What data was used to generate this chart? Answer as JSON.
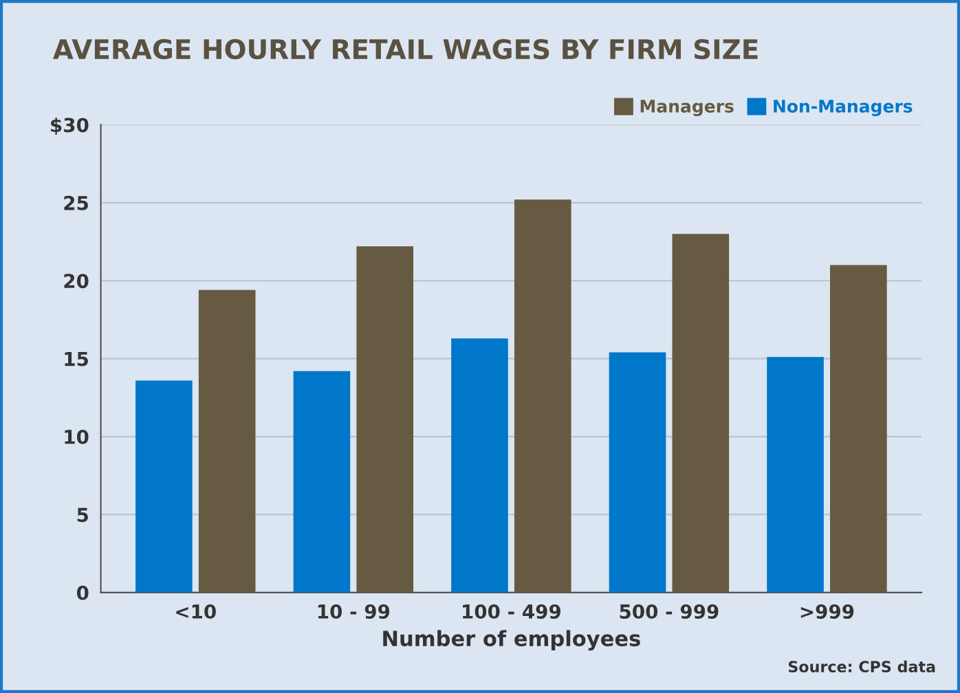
{
  "chart_data": {
    "type": "bar",
    "title": "AVERAGE HOURLY RETAIL WAGES BY FIRM SIZE",
    "xlabel": "Number of employees",
    "categories": [
      "<10",
      "10 - 99",
      "100 - 499",
      "500 - 999",
      ">999"
    ],
    "series": [
      {
        "name": "Non-Managers",
        "color": "#0077c8",
        "values": [
          13.6,
          14.2,
          16.3,
          15.4,
          15.1
        ]
      },
      {
        "name": "Managers",
        "color": "#665a42",
        "values": [
          19.4,
          22.2,
          25.2,
          23.0,
          21.0
        ]
      }
    ],
    "ylim": [
      0,
      30
    ],
    "yticks": [
      0,
      5,
      10,
      15,
      20,
      25,
      {
        "value": 30,
        "label": "$30"
      }
    ],
    "grid": "y",
    "legend": "top right",
    "annotations": [
      "Source: CPS data"
    ]
  }
}
